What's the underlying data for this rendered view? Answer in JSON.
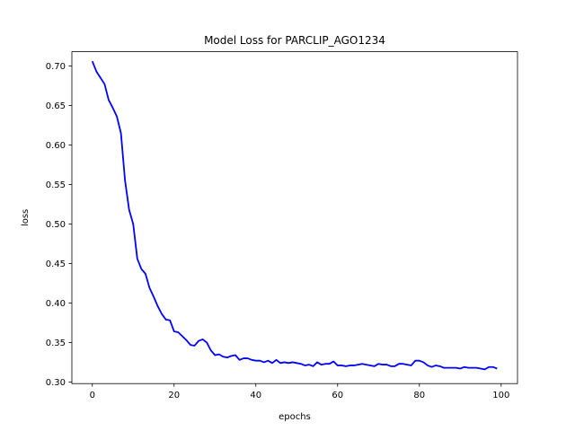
{
  "chart_data": {
    "type": "line",
    "title": "Model Loss for PARCLIP_AGO1234",
    "xlabel": "epochs",
    "ylabel": "loss",
    "xlim": [
      -5,
      104
    ],
    "ylim": [
      0.298,
      0.718
    ],
    "xticks": [
      0,
      20,
      40,
      60,
      80,
      100
    ],
    "yticks": [
      0.3,
      0.35,
      0.4,
      0.45,
      0.5,
      0.55,
      0.6,
      0.65,
      0.7
    ],
    "ytick_labels": [
      "0.30",
      "0.35",
      "0.40",
      "0.45",
      "0.50",
      "0.55",
      "0.60",
      "0.65",
      "0.70"
    ],
    "grid": false,
    "series": [
      {
        "color": "#0000ff",
        "x": [
          0,
          1,
          2,
          3,
          4,
          5,
          6,
          7,
          8,
          9,
          10,
          11,
          12,
          13,
          14,
          15,
          16,
          17,
          18,
          19,
          20,
          21,
          22,
          23,
          24,
          25,
          26,
          27,
          28,
          29,
          30,
          31,
          32,
          33,
          34,
          35,
          36,
          37,
          38,
          39,
          40,
          41,
          42,
          43,
          44,
          45,
          46,
          47,
          48,
          49,
          50,
          51,
          52,
          53,
          54,
          55,
          56,
          57,
          58,
          59,
          60,
          61,
          62,
          63,
          64,
          65,
          66,
          67,
          68,
          69,
          70,
          71,
          72,
          73,
          74,
          75,
          76,
          77,
          78,
          79,
          80,
          81,
          82,
          83,
          84,
          85,
          86,
          87,
          88,
          89,
          90,
          91,
          92,
          93,
          94,
          95,
          96,
          97,
          98,
          99
        ],
        "values": [
          0.706,
          0.693,
          0.685,
          0.677,
          0.657,
          0.647,
          0.636,
          0.615,
          0.555,
          0.518,
          0.5,
          0.456,
          0.443,
          0.437,
          0.419,
          0.408,
          0.396,
          0.386,
          0.379,
          0.378,
          0.364,
          0.363,
          0.358,
          0.353,
          0.347,
          0.346,
          0.352,
          0.354,
          0.35,
          0.34,
          0.334,
          0.335,
          0.332,
          0.331,
          0.333,
          0.334,
          0.328,
          0.33,
          0.33,
          0.328,
          0.327,
          0.327,
          0.325,
          0.327,
          0.324,
          0.328,
          0.324,
          0.325,
          0.324,
          0.325,
          0.324,
          0.323,
          0.321,
          0.322,
          0.32,
          0.325,
          0.322,
          0.323,
          0.323,
          0.326,
          0.321,
          0.321,
          0.32,
          0.321,
          0.321,
          0.322,
          0.323,
          0.322,
          0.321,
          0.32,
          0.323,
          0.322,
          0.322,
          0.32,
          0.32,
          0.323,
          0.323,
          0.322,
          0.321,
          0.327,
          0.327,
          0.325,
          0.321,
          0.319,
          0.321,
          0.32,
          0.318,
          0.318,
          0.318,
          0.318,
          0.317,
          0.319,
          0.318,
          0.318,
          0.318,
          0.317,
          0.316,
          0.319,
          0.319,
          0.317
        ]
      }
    ]
  }
}
